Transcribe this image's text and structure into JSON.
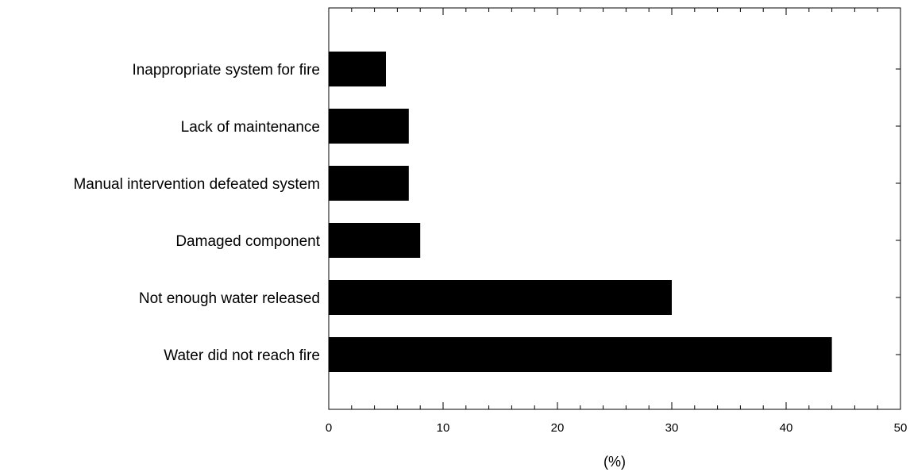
{
  "chart_data": {
    "type": "bar",
    "orientation": "horizontal",
    "categories": [
      "Inappropriate system for fire",
      "Lack of maintenance",
      "Manual intervention defeated system",
      "Damaged component",
      "Not enough water released",
      "Water did not reach fire"
    ],
    "values": [
      5,
      7,
      7,
      8,
      30,
      44
    ],
    "title": "",
    "xlabel": "(%)",
    "ylabel": "",
    "xlim": [
      0,
      50
    ],
    "xticks": [
      0,
      10,
      20,
      30,
      40,
      50
    ],
    "grid": false,
    "legend": "none",
    "bar_color": "#000000"
  }
}
